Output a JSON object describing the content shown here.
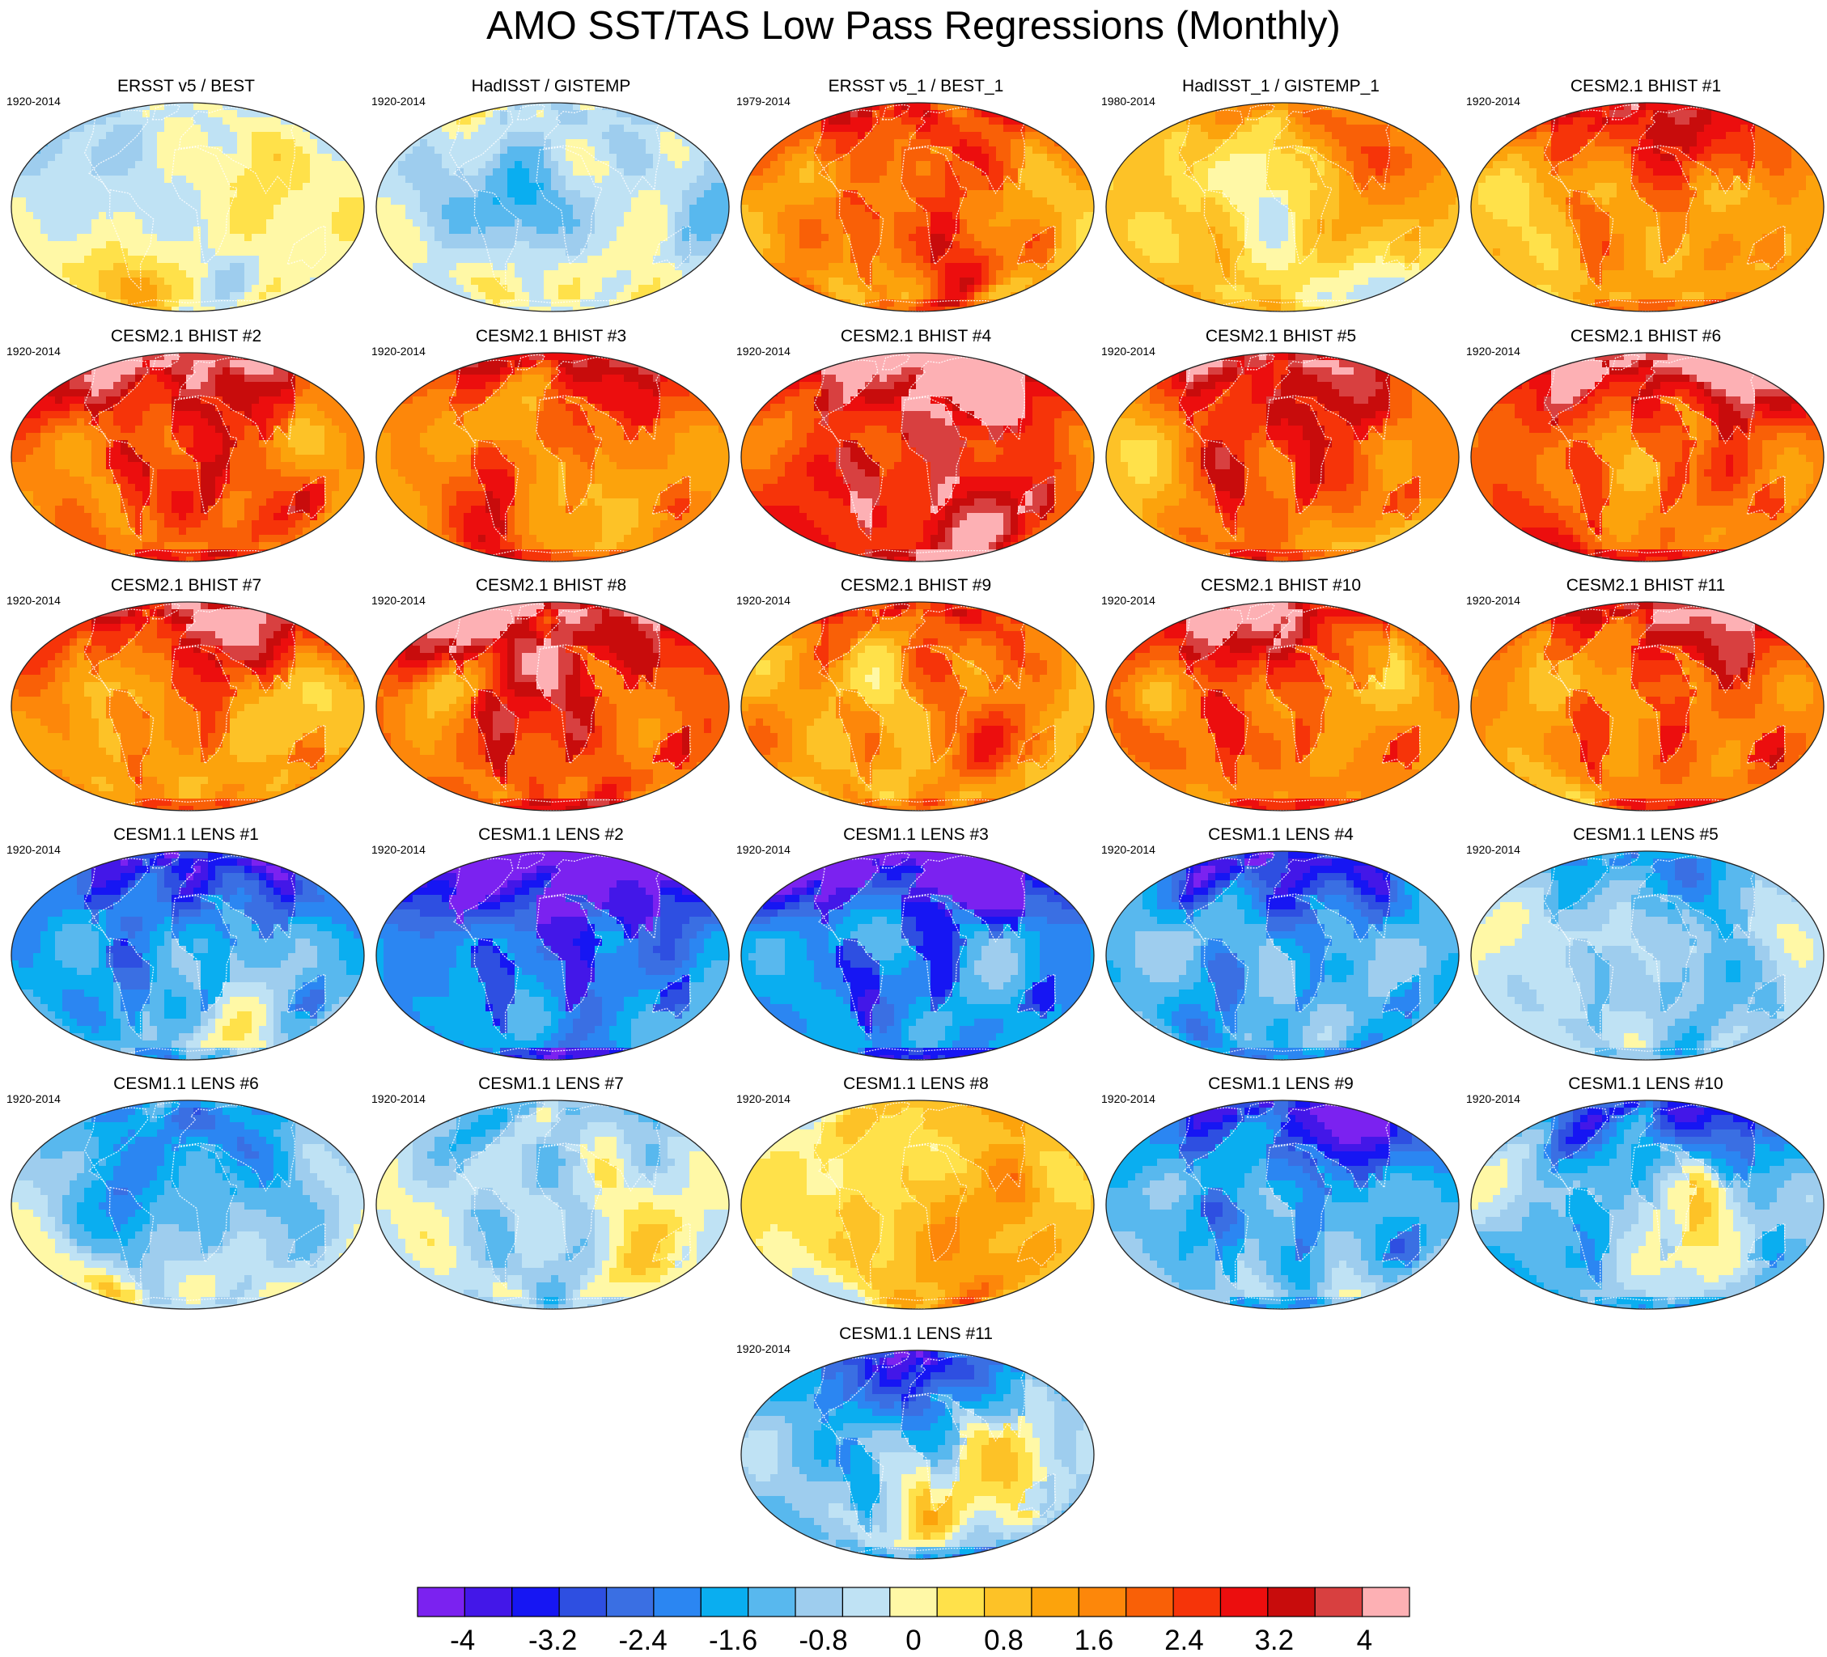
{
  "title": "AMO SST/TAS Low Pass Regressions (Monthly)",
  "chart_data": {
    "type": "heatmap",
    "title": "AMO SST/TAS Low Pass Regressions (Monthly)",
    "projection": "Robinson-like global maps",
    "panels": [
      {
        "title": "ERSST v5 / BEST",
        "years": "1920-2014",
        "warmth": -0.2
      },
      {
        "title": "HadISST / GISTEMP",
        "years": "1920-2014",
        "warmth": -0.35
      },
      {
        "title": "ERSST v5_1 / BEST_1",
        "years": "1979-2014",
        "warmth": 1.2
      },
      {
        "title": "HadISST_1 / GISTEMP_1",
        "years": "1980-2014",
        "warmth": 0.6
      },
      {
        "title": "CESM2.1 BHIST #1",
        "years": "1920-2014",
        "warmth": 1.3
      },
      {
        "title": "CESM2.1 BHIST #2",
        "years": "1920-2014",
        "warmth": 1.7
      },
      {
        "title": "CESM2.1 BHIST #3",
        "years": "1920-2014",
        "warmth": 1.4
      },
      {
        "title": "CESM2.1 BHIST #4",
        "years": "1920-2014",
        "warmth": 2.1
      },
      {
        "title": "CESM2.1 BHIST #5",
        "years": "1920-2014",
        "warmth": 1.5
      },
      {
        "title": "CESM2.1 BHIST #6",
        "years": "1920-2014",
        "warmth": 1.8
      },
      {
        "title": "CESM2.1 BHIST #7",
        "years": "1920-2014",
        "warmth": 1.5
      },
      {
        "title": "CESM2.1 BHIST #8",
        "years": "1920-2014",
        "warmth": 1.9
      },
      {
        "title": "CESM2.1 BHIST #9",
        "years": "1920-2014",
        "warmth": 1.2
      },
      {
        "title": "CESM2.1 BHIST #10",
        "years": "1920-2014",
        "warmth": 1.7
      },
      {
        "title": "CESM2.1 BHIST #11",
        "years": "1920-2014",
        "warmth": 1.8
      },
      {
        "title": "CESM1.1 LENS #1",
        "years": "1920-2014",
        "warmth": -1.6
      },
      {
        "title": "CESM1.1 LENS #2",
        "years": "1920-2014",
        "warmth": -2.6
      },
      {
        "title": "CESM1.1 LENS #3",
        "years": "1920-2014",
        "warmth": -2.5
      },
      {
        "title": "CESM1.1 LENS #4",
        "years": "1920-2014",
        "warmth": -1.5
      },
      {
        "title": "CESM1.1 LENS #5",
        "years": "1920-2014",
        "warmth": -0.9
      },
      {
        "title": "CESM1.1 LENS #6",
        "years": "1920-2014",
        "warmth": -0.5
      },
      {
        "title": "CESM1.1 LENS #7",
        "years": "1920-2014",
        "warmth": -0.6
      },
      {
        "title": "CESM1.1 LENS #8",
        "years": "1920-2014",
        "warmth": 0.4
      },
      {
        "title": "CESM1.1 LENS #9",
        "years": "1920-2014",
        "warmth": -1.6
      },
      {
        "title": "CESM1.1 LENS #10",
        "years": "1920-2014",
        "warmth": -1.3
      },
      {
        "title": "CESM1.1 LENS #11",
        "years": "1920-2014",
        "warmth": -1.3
      }
    ],
    "colorbar": {
      "min": -4.4,
      "max": 4.4,
      "step": 0.4,
      "tick_labels": [
        "-4",
        "-3.2",
        "-2.4",
        "-1.6",
        "-0.8",
        "0",
        "0.8",
        "1.6",
        "2.4",
        "3.2",
        "4"
      ],
      "tick_values": [
        -4,
        -3.2,
        -2.4,
        -1.6,
        -0.8,
        0,
        0.8,
        1.6,
        2.4,
        3.2,
        4
      ],
      "colors": [
        "#7b22f0",
        "#4317e8",
        "#1616f3",
        "#2e4fe1",
        "#3a6fe3",
        "#2b86f2",
        "#0aaef0",
        "#58b8ee",
        "#9ecdee",
        "#bfe2f4",
        "#fff8a6",
        "#ffe14a",
        "#fdc227",
        "#fca30c",
        "#fd870a",
        "#f96007",
        "#f63409",
        "#ec0e0e",
        "#c80c0c",
        "#d84040",
        "#fdb0b4"
      ]
    }
  }
}
